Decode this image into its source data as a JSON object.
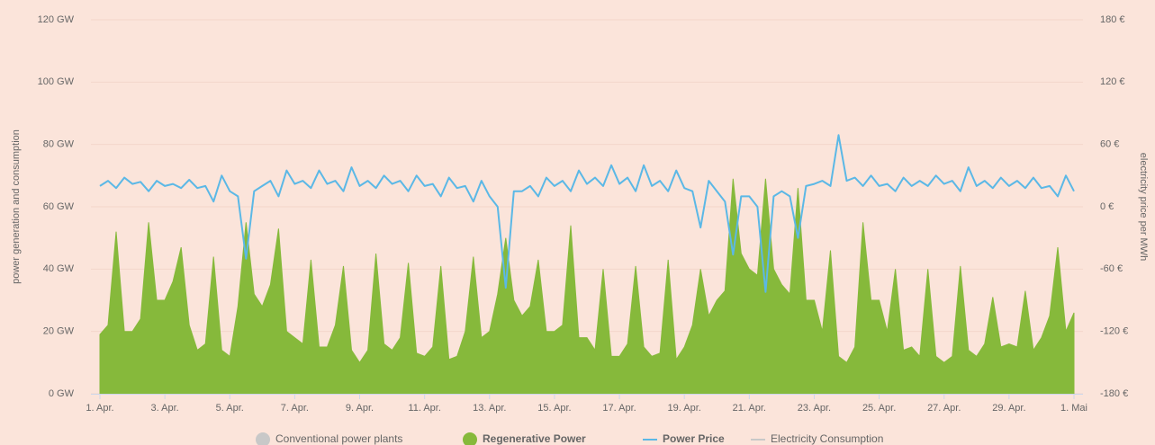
{
  "chart_data": {
    "type": "line",
    "y_label": "power generation and consumption",
    "y2_label": "electricity price per MWh",
    "x": [
      0,
      0.25,
      0.5,
      0.75,
      1,
      1.25,
      1.5,
      1.75,
      2,
      2.25,
      2.5,
      2.75,
      3,
      3.25,
      3.5,
      3.75,
      4,
      4.25,
      4.5,
      4.75,
      5,
      5.25,
      5.5,
      5.75,
      6,
      6.25,
      6.5,
      6.75,
      7,
      7.25,
      7.5,
      7.75,
      8,
      8.25,
      8.5,
      8.75,
      9,
      9.25,
      9.5,
      9.75,
      10,
      10.25,
      10.5,
      10.75,
      11,
      11.25,
      11.5,
      11.75,
      12,
      12.25,
      12.5,
      12.75,
      13,
      13.25,
      13.5,
      13.75,
      14,
      14.25,
      14.5,
      14.75,
      15,
      15.25,
      15.5,
      15.75,
      16,
      16.25,
      16.5,
      16.75,
      17,
      17.25,
      17.5,
      17.75,
      18,
      18.25,
      18.5,
      18.75,
      19,
      19.25,
      19.5,
      19.75,
      20,
      20.25,
      20.5,
      20.75,
      21,
      21.25,
      21.5,
      21.75,
      22,
      22.25,
      22.5,
      22.75,
      23,
      23.25,
      23.5,
      23.75,
      24,
      24.25,
      24.5,
      24.75,
      25,
      25.25,
      25.5,
      25.75,
      26,
      26.25,
      26.5,
      26.75,
      27,
      27.25,
      27.5,
      27.75,
      28,
      28.25,
      28.5,
      28.75,
      29,
      29.25,
      29.5,
      29.75,
      30
    ],
    "xlim": [
      0,
      30
    ],
    "xticks": [
      {
        "value": 0,
        "label": "1. Apr."
      },
      {
        "value": 2,
        "label": "3. Apr."
      },
      {
        "value": 4,
        "label": "5. Apr."
      },
      {
        "value": 6,
        "label": "7. Apr."
      },
      {
        "value": 8,
        "label": "9. Apr."
      },
      {
        "value": 10,
        "label": "11. Apr."
      },
      {
        "value": 12,
        "label": "13. Apr."
      },
      {
        "value": 14,
        "label": "15. Apr."
      },
      {
        "value": 16,
        "label": "17. Apr."
      },
      {
        "value": 18,
        "label": "19. Apr."
      },
      {
        "value": 20,
        "label": "21. Apr."
      },
      {
        "value": 22,
        "label": "23. Apr."
      },
      {
        "value": 24,
        "label": "25. Apr."
      },
      {
        "value": 26,
        "label": "27. Apr."
      },
      {
        "value": 28,
        "label": "29. Apr."
      },
      {
        "value": 30,
        "label": "1. Mai"
      }
    ],
    "ylim": [
      0,
      120
    ],
    "yticks": [
      {
        "value": 0,
        "label": "0 GW"
      },
      {
        "value": 20,
        "label": "20 GW"
      },
      {
        "value": 40,
        "label": "40 GW"
      },
      {
        "value": 60,
        "label": "60 GW"
      },
      {
        "value": 80,
        "label": "80 GW"
      },
      {
        "value": 100,
        "label": "100 GW"
      },
      {
        "value": 120,
        "label": "120 GW"
      }
    ],
    "y2lim": [
      -180,
      180
    ],
    "y2ticks": [
      {
        "value": -180,
        "label": "-180 €"
      },
      {
        "value": -120,
        "label": "-120 €"
      },
      {
        "value": -60,
        "label": "-60 €"
      },
      {
        "value": 0,
        "label": "0 €"
      },
      {
        "value": 60,
        "label": "60 €"
      },
      {
        "value": 120,
        "label": "120 €"
      },
      {
        "value": 180,
        "label": "180 €"
      }
    ],
    "grid": true,
    "series": [
      {
        "name": "Regenerative Power",
        "color": "#86b93b",
        "type": "area",
        "values": [
          19,
          22,
          52,
          20,
          20,
          24,
          55,
          30,
          30,
          36,
          47,
          22,
          14,
          16,
          44,
          14,
          12,
          28,
          55,
          32,
          28,
          35,
          53,
          20,
          18,
          16,
          43,
          15,
          15,
          22,
          41,
          14,
          10,
          14,
          45,
          16,
          14,
          18,
          42,
          13,
          12,
          15,
          41,
          11,
          12,
          20,
          44,
          18,
          20,
          32,
          50,
          30,
          25,
          28,
          43,
          20,
          20,
          22,
          54,
          18,
          18,
          14,
          40,
          12,
          12,
          16,
          41,
          15,
          12,
          13,
          43,
          11,
          15,
          22,
          40,
          25,
          30,
          33,
          69,
          45,
          40,
          38,
          69,
          40,
          35,
          32,
          66,
          30,
          30,
          20,
          46,
          12,
          10,
          15,
          55,
          30,
          30,
          20,
          40,
          14,
          15,
          12,
          40,
          12,
          10,
          12,
          41,
          14,
          12,
          16,
          31,
          15,
          16,
          15,
          33,
          14,
          18,
          25,
          47,
          20,
          26
        ]
      },
      {
        "name": "Power Price",
        "color": "#5bb8e6",
        "type": "line",
        "axis": "y2",
        "values": [
          20,
          25,
          18,
          28,
          22,
          24,
          15,
          25,
          20,
          22,
          18,
          26,
          18,
          20,
          5,
          30,
          15,
          10,
          -50,
          15,
          20,
          25,
          10,
          35,
          22,
          25,
          18,
          35,
          22,
          25,
          15,
          38,
          20,
          25,
          18,
          30,
          22,
          25,
          15,
          30,
          20,
          22,
          10,
          28,
          18,
          20,
          5,
          25,
          10,
          0,
          -78,
          15,
          15,
          20,
          10,
          28,
          20,
          25,
          15,
          35,
          22,
          28,
          20,
          40,
          22,
          28,
          15,
          40,
          20,
          25,
          15,
          35,
          18,
          15,
          -20,
          25,
          15,
          5,
          -46,
          10,
          10,
          0,
          -82,
          10,
          15,
          10,
          -30,
          20,
          22,
          25,
          20,
          69,
          25,
          28,
          20,
          30,
          20,
          22,
          15,
          28,
          20,
          25,
          20,
          30,
          22,
          25,
          15,
          38,
          20,
          25,
          18,
          28,
          20,
          25,
          18,
          28,
          18,
          20,
          10,
          30,
          15
        ]
      }
    ],
    "legend": [
      {
        "name": "Conventional power plants",
        "color": "#c8c8c8",
        "marker": "circle",
        "hidden": true
      },
      {
        "name": "Regenerative Power",
        "color": "#86b93b",
        "marker": "circle",
        "hidden": false
      },
      {
        "name": "Power Price",
        "color": "#5bb8e6",
        "marker": "line",
        "hidden": false
      },
      {
        "name": "Electricity Consumption",
        "color": "#c8c8c8",
        "marker": "line",
        "hidden": true
      }
    ]
  }
}
